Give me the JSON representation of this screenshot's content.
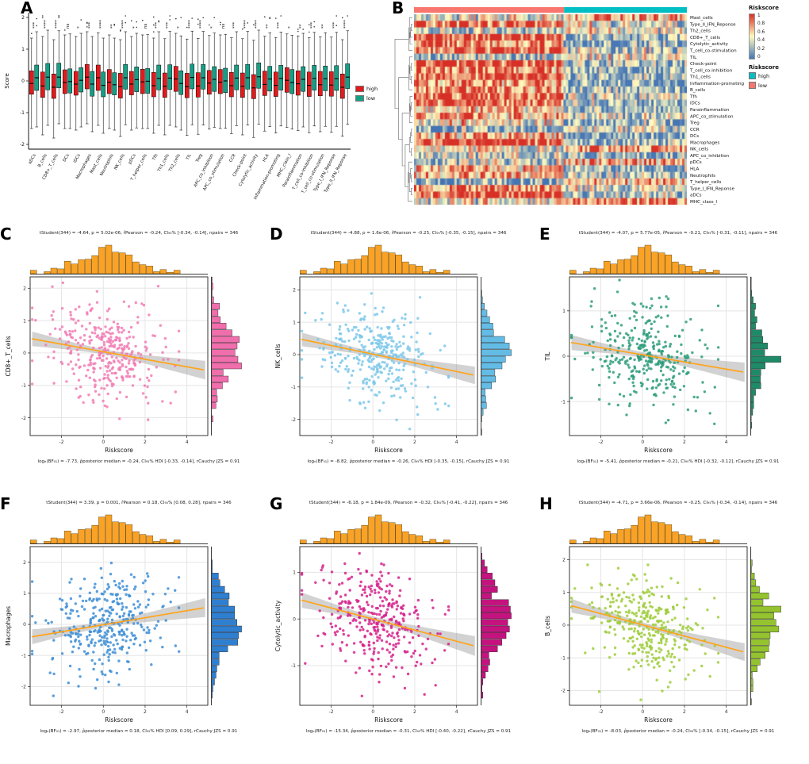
{
  "colors": {
    "high_risk_box": "#E31A1C",
    "low_risk_box": "#169F85",
    "hist_top": "#F9A226",
    "reg_line": "#FFA41B",
    "ci_band": "#8f8f8f",
    "anno_high": "#00BFC4",
    "anno_low": "#F8766D"
  },
  "chart_data": [
    {
      "id": "A",
      "type": "boxplot",
      "letter": "A",
      "ylabel": "Score",
      "ylim": [
        -2.15,
        2.15
      ],
      "yticks": [
        -2,
        -1,
        0,
        1,
        2
      ],
      "legend": [
        {
          "label": "high",
          "color": "#E31A1C"
        },
        {
          "label": "low",
          "color": "#169F85"
        }
      ],
      "categories": [
        {
          "name": "aDCs",
          "sig": "***",
          "high": [
            -1.5,
            -0.42,
            -0.08,
            0.32,
            1.35
          ],
          "low": [
            -1.45,
            -0.3,
            0.1,
            0.5,
            1.55
          ]
        },
        {
          "name": "B_cells",
          "sig": "****",
          "high": [
            -1.7,
            -0.52,
            -0.16,
            0.28,
            1.4
          ],
          "low": [
            -1.4,
            -0.28,
            0.12,
            0.55,
            1.6
          ]
        },
        {
          "name": "CD8+_T_cells",
          "sig": "****",
          "high": [
            -1.8,
            -0.55,
            -0.2,
            0.22,
            1.3
          ],
          "low": [
            -1.35,
            -0.22,
            0.12,
            0.56,
            1.58
          ]
        },
        {
          "name": "DCs",
          "sig": "ns",
          "high": [
            -1.5,
            -0.4,
            -0.05,
            0.35,
            1.45
          ],
          "low": [
            -1.5,
            -0.38,
            -0.02,
            0.38,
            1.48
          ]
        },
        {
          "name": "iDCs",
          "sig": "*",
          "high": [
            -1.55,
            -0.45,
            -0.1,
            0.3,
            1.4
          ],
          "low": [
            -1.45,
            -0.35,
            0.02,
            0.42,
            1.5
          ]
        },
        {
          "name": "Macrophages",
          "sig": "***",
          "high": [
            -1.35,
            -0.25,
            0.12,
            0.52,
            1.55
          ],
          "low": [
            -1.6,
            -0.48,
            -0.1,
            0.3,
            1.4
          ]
        },
        {
          "name": "Mast_cells",
          "sig": "****",
          "high": [
            -1.4,
            -0.3,
            0.1,
            0.5,
            1.52
          ],
          "low": [
            -1.65,
            -0.5,
            -0.14,
            0.28,
            1.35
          ]
        },
        {
          "name": "Neutrophils",
          "sig": "**",
          "high": [
            -1.5,
            -0.4,
            -0.04,
            0.36,
            1.45
          ],
          "low": [
            -1.55,
            -0.44,
            -0.12,
            0.26,
            1.35
          ]
        },
        {
          "name": "NK_cells",
          "sig": "****",
          "high": [
            -1.75,
            -0.54,
            -0.18,
            0.24,
            1.3
          ],
          "low": [
            -1.38,
            -0.26,
            0.1,
            0.52,
            1.55
          ]
        },
        {
          "name": "pDCs",
          "sig": "*",
          "high": [
            -1.55,
            -0.44,
            -0.1,
            0.3,
            1.4
          ],
          "low": [
            -1.48,
            -0.34,
            0.04,
            0.44,
            1.5
          ]
        },
        {
          "name": "T_helper_cells",
          "sig": "ns",
          "high": [
            -1.5,
            -0.4,
            -0.03,
            0.37,
            1.45
          ],
          "low": [
            -1.5,
            -0.39,
            -0.01,
            0.39,
            1.46
          ]
        },
        {
          "name": "Tfh",
          "sig": "***",
          "high": [
            -1.65,
            -0.5,
            -0.15,
            0.27,
            1.35
          ],
          "low": [
            -1.4,
            -0.28,
            0.08,
            0.5,
            1.55
          ]
        },
        {
          "name": "Th1_cells",
          "sig": "***",
          "high": [
            -1.7,
            -0.52,
            -0.17,
            0.25,
            1.33
          ],
          "low": [
            -1.4,
            -0.27,
            0.09,
            0.51,
            1.56
          ]
        },
        {
          "name": "Th2_cells",
          "sig": "*",
          "high": [
            -1.45,
            -0.33,
            0.06,
            0.46,
            1.5
          ],
          "low": [
            -1.55,
            -0.43,
            -0.08,
            0.32,
            1.42
          ]
        },
        {
          "name": "TIL",
          "sig": "****",
          "high": [
            -1.72,
            -0.53,
            -0.18,
            0.24,
            1.32
          ],
          "low": [
            -1.38,
            -0.25,
            0.11,
            0.53,
            1.57
          ]
        },
        {
          "name": "Treg",
          "sig": "****",
          "high": [
            -1.68,
            -0.51,
            -0.16,
            0.26,
            1.34
          ],
          "low": [
            -1.39,
            -0.26,
            0.1,
            0.52,
            1.56
          ]
        },
        {
          "name": "APC_co_inhibition",
          "sig": "*",
          "high": [
            -1.52,
            -0.42,
            -0.07,
            0.33,
            1.43
          ],
          "low": [
            -1.46,
            -0.33,
            0.05,
            0.45,
            1.51
          ]
        },
        {
          "name": "APC_co_stimulation",
          "sig": "ns",
          "high": [
            -1.5,
            -0.4,
            -0.04,
            0.36,
            1.45
          ],
          "low": [
            -1.49,
            -0.37,
            0.0,
            0.4,
            1.47
          ]
        },
        {
          "name": "CCR",
          "sig": "***",
          "high": [
            -1.66,
            -0.5,
            -0.15,
            0.27,
            1.36
          ],
          "low": [
            -1.41,
            -0.28,
            0.09,
            0.5,
            1.55
          ]
        },
        {
          "name": "Check-point",
          "sig": "****",
          "high": [
            -1.7,
            -0.52,
            -0.17,
            0.25,
            1.33
          ],
          "low": [
            -1.39,
            -0.26,
            0.1,
            0.52,
            1.56
          ]
        },
        {
          "name": "Cytolytic_activity",
          "sig": "****",
          "high": [
            -1.78,
            -0.56,
            -0.22,
            0.2,
            1.28
          ],
          "low": [
            -1.36,
            -0.23,
            0.13,
            0.57,
            1.6
          ]
        },
        {
          "name": "HLA",
          "sig": "**",
          "high": [
            -1.58,
            -0.46,
            -0.11,
            0.31,
            1.41
          ],
          "low": [
            -1.44,
            -0.32,
            0.06,
            0.46,
            1.52
          ]
        },
        {
          "name": "Inflammation-promoting",
          "sig": "***",
          "high": [
            -1.64,
            -0.49,
            -0.14,
            0.28,
            1.37
          ],
          "low": [
            -1.42,
            -0.29,
            0.08,
            0.49,
            1.54
          ]
        },
        {
          "name": "MHC_class_I",
          "sig": "*",
          "high": [
            -1.47,
            -0.36,
            0.02,
            0.42,
            1.48
          ],
          "low": [
            -1.52,
            -0.4,
            -0.05,
            0.36,
            1.44
          ]
        },
        {
          "name": "Parainflammation",
          "sig": "**",
          "high": [
            -1.56,
            -0.45,
            -0.09,
            0.32,
            1.42
          ],
          "low": [
            -1.45,
            -0.33,
            0.05,
            0.45,
            1.5
          ]
        },
        {
          "name": "T_cell_co-inhibition",
          "sig": "***",
          "high": [
            -1.63,
            -0.49,
            -0.14,
            0.28,
            1.37
          ],
          "low": [
            -1.42,
            -0.29,
            0.08,
            0.49,
            1.53
          ]
        },
        {
          "name": "T_cell_co-stimulation",
          "sig": "**",
          "high": [
            -1.6,
            -0.47,
            -0.12,
            0.3,
            1.39
          ],
          "low": [
            -1.43,
            -0.31,
            0.07,
            0.47,
            1.52
          ]
        },
        {
          "name": "Type_I_IFN_Reponse",
          "sig": "***",
          "high": [
            -1.62,
            -0.48,
            -0.13,
            0.29,
            1.38
          ],
          "low": [
            -1.43,
            -0.3,
            0.07,
            0.48,
            1.53
          ]
        },
        {
          "name": "Type_II_IFN_Reponse",
          "sig": "****",
          "high": [
            -1.74,
            -0.55,
            -0.2,
            0.22,
            1.3
          ],
          "low": [
            -1.37,
            -0.24,
            0.12,
            0.54,
            1.58
          ]
        }
      ]
    },
    {
      "id": "B",
      "type": "heatmap",
      "letter": "B",
      "rows": [
        "Mast_cells",
        "Type_II_IFN_Reponse",
        "Th2_cells",
        "CD8+_T_cells",
        "Cytolytic_activity",
        "T_cell_co-stimulation",
        "TIL",
        "Check-point",
        "T_cell_co-inhibition",
        "Th1_cells",
        "Inflammation-promoting",
        "B_cells",
        "Tfh",
        "iDCs",
        "Parainflammation",
        "APC_co_stimulation",
        "Treg",
        "CCR",
        "DCs",
        "Macrophages",
        "NK_cells",
        "APC_co_inhibition",
        "pDCs",
        "HLA",
        "Neutrophils",
        "T_helper_cells",
        "Type_I_IFN_Reponse",
        "aDCs",
        "MHC_class_I"
      ],
      "n_samples_shown": 115,
      "annotation": {
        "title": "Riskscore",
        "groups": [
          {
            "label": "low",
            "color": "#F8766D",
            "fraction": 0.55
          },
          {
            "label": "high",
            "color": "#00BFC4",
            "fraction": 0.45
          }
        ]
      },
      "scale": {
        "title": "Riskscore",
        "ticks": [
          1,
          0.8,
          0.6,
          0.4,
          0.2,
          0
        ],
        "colors": {
          "low": "#4575B4",
          "mid": "#FFFBBF",
          "high": "#D73027"
        }
      },
      "legend_items": [
        {
          "label": "high",
          "color": "#00BFC4"
        },
        {
          "label": "low",
          "color": "#F8766D"
        }
      ]
    },
    {
      "id": "C",
      "type": "scatter-marginal",
      "letter": "C",
      "xlabel": "Riskscore",
      "ylabel": "CD8+_T_cells",
      "color": "#F17CB4",
      "color_hist": "#F06EAC",
      "n_pairs": 346,
      "df": 344,
      "t": -4.64,
      "p": "5.02e-06",
      "pearson_r": -0.24,
      "ci95": [
        -0.34,
        -0.14
      ],
      "bayes": {
        "log_e_BF01": -7.73,
        "rho_posterior_median": -0.24,
        "hdi95": [
          -0.33,
          -0.14
        ],
        "r_cauchy_jzs": 0.91
      },
      "stats_top": "tStudent(344) = -4.64, p = 5.02e-06, r̂Pearson = -0.24, CI₉₅% [-0.34, -0.14], npairs = 346",
      "stats_bottom": "logₑ(BF₀₁) = -7.73, ρ̂posterior median = -0.24, CI₉₅% HDI [-0.33, -0.14], rCauchy JZS = 0.91",
      "xlim": [
        -3.5,
        5.0
      ],
      "xticks": [
        -2,
        0,
        2,
        4
      ],
      "ylim": [
        -2.55,
        2.35
      ],
      "yticks": [
        -2,
        -1,
        0,
        1,
        2
      ],
      "sd_y": 0.78
    },
    {
      "id": "D",
      "type": "scatter-marginal",
      "letter": "D",
      "xlabel": "Riskscore",
      "ylabel": "NK_cells",
      "color": "#7CC8EA",
      "color_hist": "#63BCE5",
      "n_pairs": 346,
      "df": 344,
      "t": -4.88,
      "p": "1.6e-06",
      "pearson_r": -0.25,
      "ci95": [
        -0.35,
        -0.15
      ],
      "bayes": {
        "log_e_BF01": -8.82,
        "rho_posterior_median": -0.26,
        "hdi95": [
          -0.35,
          -0.15
        ],
        "r_cauchy_jzs": 0.91
      },
      "stats_top": "tStudent(344) = -4.88, p = 1.6e-06, r̂Pearson = -0.25, CI₉₅% [-0.35, -0.15], npairs = 346",
      "stats_bottom": "logₑ(BF₀₁) = -8.82, ρ̂posterior median = -0.26, CI₉₅% HDI [-0.35, -0.15], rCauchy JZS = 0.91",
      "xlim": [
        -3.5,
        5.0
      ],
      "xticks": [
        -2,
        0,
        2,
        4
      ],
      "ylim": [
        -2.5,
        2.4
      ],
      "yticks": [
        -2,
        -1,
        0,
        1,
        2
      ],
      "sd_y": 0.72
    },
    {
      "id": "E",
      "type": "scatter-marginal",
      "letter": "E",
      "xlabel": "Riskscore",
      "ylabel": "TIL",
      "color": "#2E9E7B",
      "color_hist": "#1F8A68",
      "n_pairs": 346,
      "df": 344,
      "t": -4.07,
      "p": "5.77e-05",
      "pearson_r": -0.21,
      "ci95": [
        -0.31,
        -0.11
      ],
      "bayes": {
        "log_e_BF01": -5.41,
        "rho_posterior_median": -0.21,
        "hdi95": [
          -0.32,
          -0.12
        ],
        "r_cauchy_jzs": 0.91
      },
      "stats_top": "tStudent(344) = -4.07, p = 5.77e-05, r̂Pearson = -0.21, CI₉₅% [-0.31, -0.11], npairs = 346",
      "stats_bottom": "logₑ(BF₀₁) = -5.41, ρ̂posterior median = -0.21, CI₉₅% HDI [-0.32, -0.12], rCauchy JZS = 0.91",
      "xlim": [
        -3.5,
        5.0
      ],
      "xticks": [
        -2,
        0,
        2,
        4
      ],
      "ylim": [
        -1.75,
        1.75
      ],
      "yticks": [
        -1,
        0,
        1
      ],
      "sd_y": 0.55
    },
    {
      "id": "F",
      "type": "scatter-marginal",
      "letter": "F",
      "xlabel": "Riskscore",
      "ylabel": "Macrophages",
      "color": "#3E8ED6",
      "color_hist": "#2F7FD1",
      "n_pairs": 346,
      "df": 344,
      "t": 3.39,
      "p": "0.001",
      "pearson_r": 0.18,
      "ci95": [
        0.08,
        0.28
      ],
      "bayes": {
        "log_e_BF01": -2.97,
        "rho_posterior_median": 0.18,
        "hdi95": [
          0.09,
          0.29
        ],
        "r_cauchy_jzs": 0.91
      },
      "stats_top": "tStudent(344) = 3.39, p = 0.001, r̂Pearson = 0.18, CI₉₅% [0.08, 0.28], npairs = 346",
      "stats_bottom": "logₑ(BF₀₁) = -2.97, ρ̂posterior median = 0.18, CI₉₅% HDI [0.09, 0.29], rCauchy JZS = 0.91",
      "xlim": [
        -3.5,
        5.0
      ],
      "xticks": [
        -2,
        0,
        2,
        4
      ],
      "ylim": [
        -2.6,
        2.5
      ],
      "yticks": [
        -2,
        -1,
        0,
        1,
        2
      ],
      "sd_y": 0.82
    },
    {
      "id": "G",
      "type": "scatter-marginal",
      "letter": "G",
      "xlabel": "Riskscore",
      "ylabel": "Cytolytic_activity",
      "color": "#D6218C",
      "color_hist": "#C4137E",
      "n_pairs": 346,
      "df": 344,
      "t": -6.18,
      "p": "1.84e-09",
      "pearson_r": -0.32,
      "ci95": [
        -0.41,
        -0.22
      ],
      "bayes": {
        "log_e_BF01": -15.34,
        "rho_posterior_median": -0.31,
        "hdi95": [
          -0.4,
          -0.22
        ],
        "r_cauchy_jzs": 0.91
      },
      "stats_top": "tStudent(344) = -6.18, p = 1.84e-09, r̂Pearson = -0.32, CI₉₅% [-0.41, -0.22], npairs = 346",
      "stats_bottom": "logₑ(BF₀₁) = -15.34, ρ̂posterior median = -0.31, CI₉₅% HDI [-0.40, -0.22], rCauchy JZS = 0.91",
      "xlim": [
        -3.5,
        5.0
      ],
      "xticks": [
        -2,
        0,
        2,
        4
      ],
      "ylim": [
        -1.85,
        1.55
      ],
      "yticks": [
        -1,
        0,
        1
      ],
      "sd_y": 0.56
    },
    {
      "id": "H",
      "type": "scatter-marginal",
      "letter": "H",
      "xlabel": "Riskscore",
      "ylabel": "B_cells",
      "color": "#9FCC3B",
      "color_hist": "#94C32F",
      "n_pairs": 346,
      "df": 344,
      "t": -4.71,
      "p": "3.66e-06",
      "pearson_r": -0.25,
      "ci95": [
        -0.34,
        -0.14
      ],
      "bayes": {
        "log_e_BF01": -8.03,
        "rho_posterior_median": -0.24,
        "hdi95": [
          -0.34,
          -0.15
        ],
        "r_cauchy_jzs": 0.91
      },
      "stats_top": "tStudent(344) = -4.71, p = 3.66e-06, r̂Pearson = -0.25, CI₉₅% [-0.34, -0.14], npairs = 346",
      "stats_bottom": "logₑ(BF₀₁) = -8.03, ρ̂posterior median = -0.24, CI₉₅% [-0.34, -0.15], rCauchy JZS = 0.91",
      "xlim": [
        -3.5,
        5.0
      ],
      "xticks": [
        -2,
        0,
        2,
        4
      ],
      "ylim": [
        -2.45,
        2.4
      ],
      "yticks": [
        -2,
        -1,
        0,
        1,
        2
      ],
      "sd_y": 0.72
    }
  ]
}
